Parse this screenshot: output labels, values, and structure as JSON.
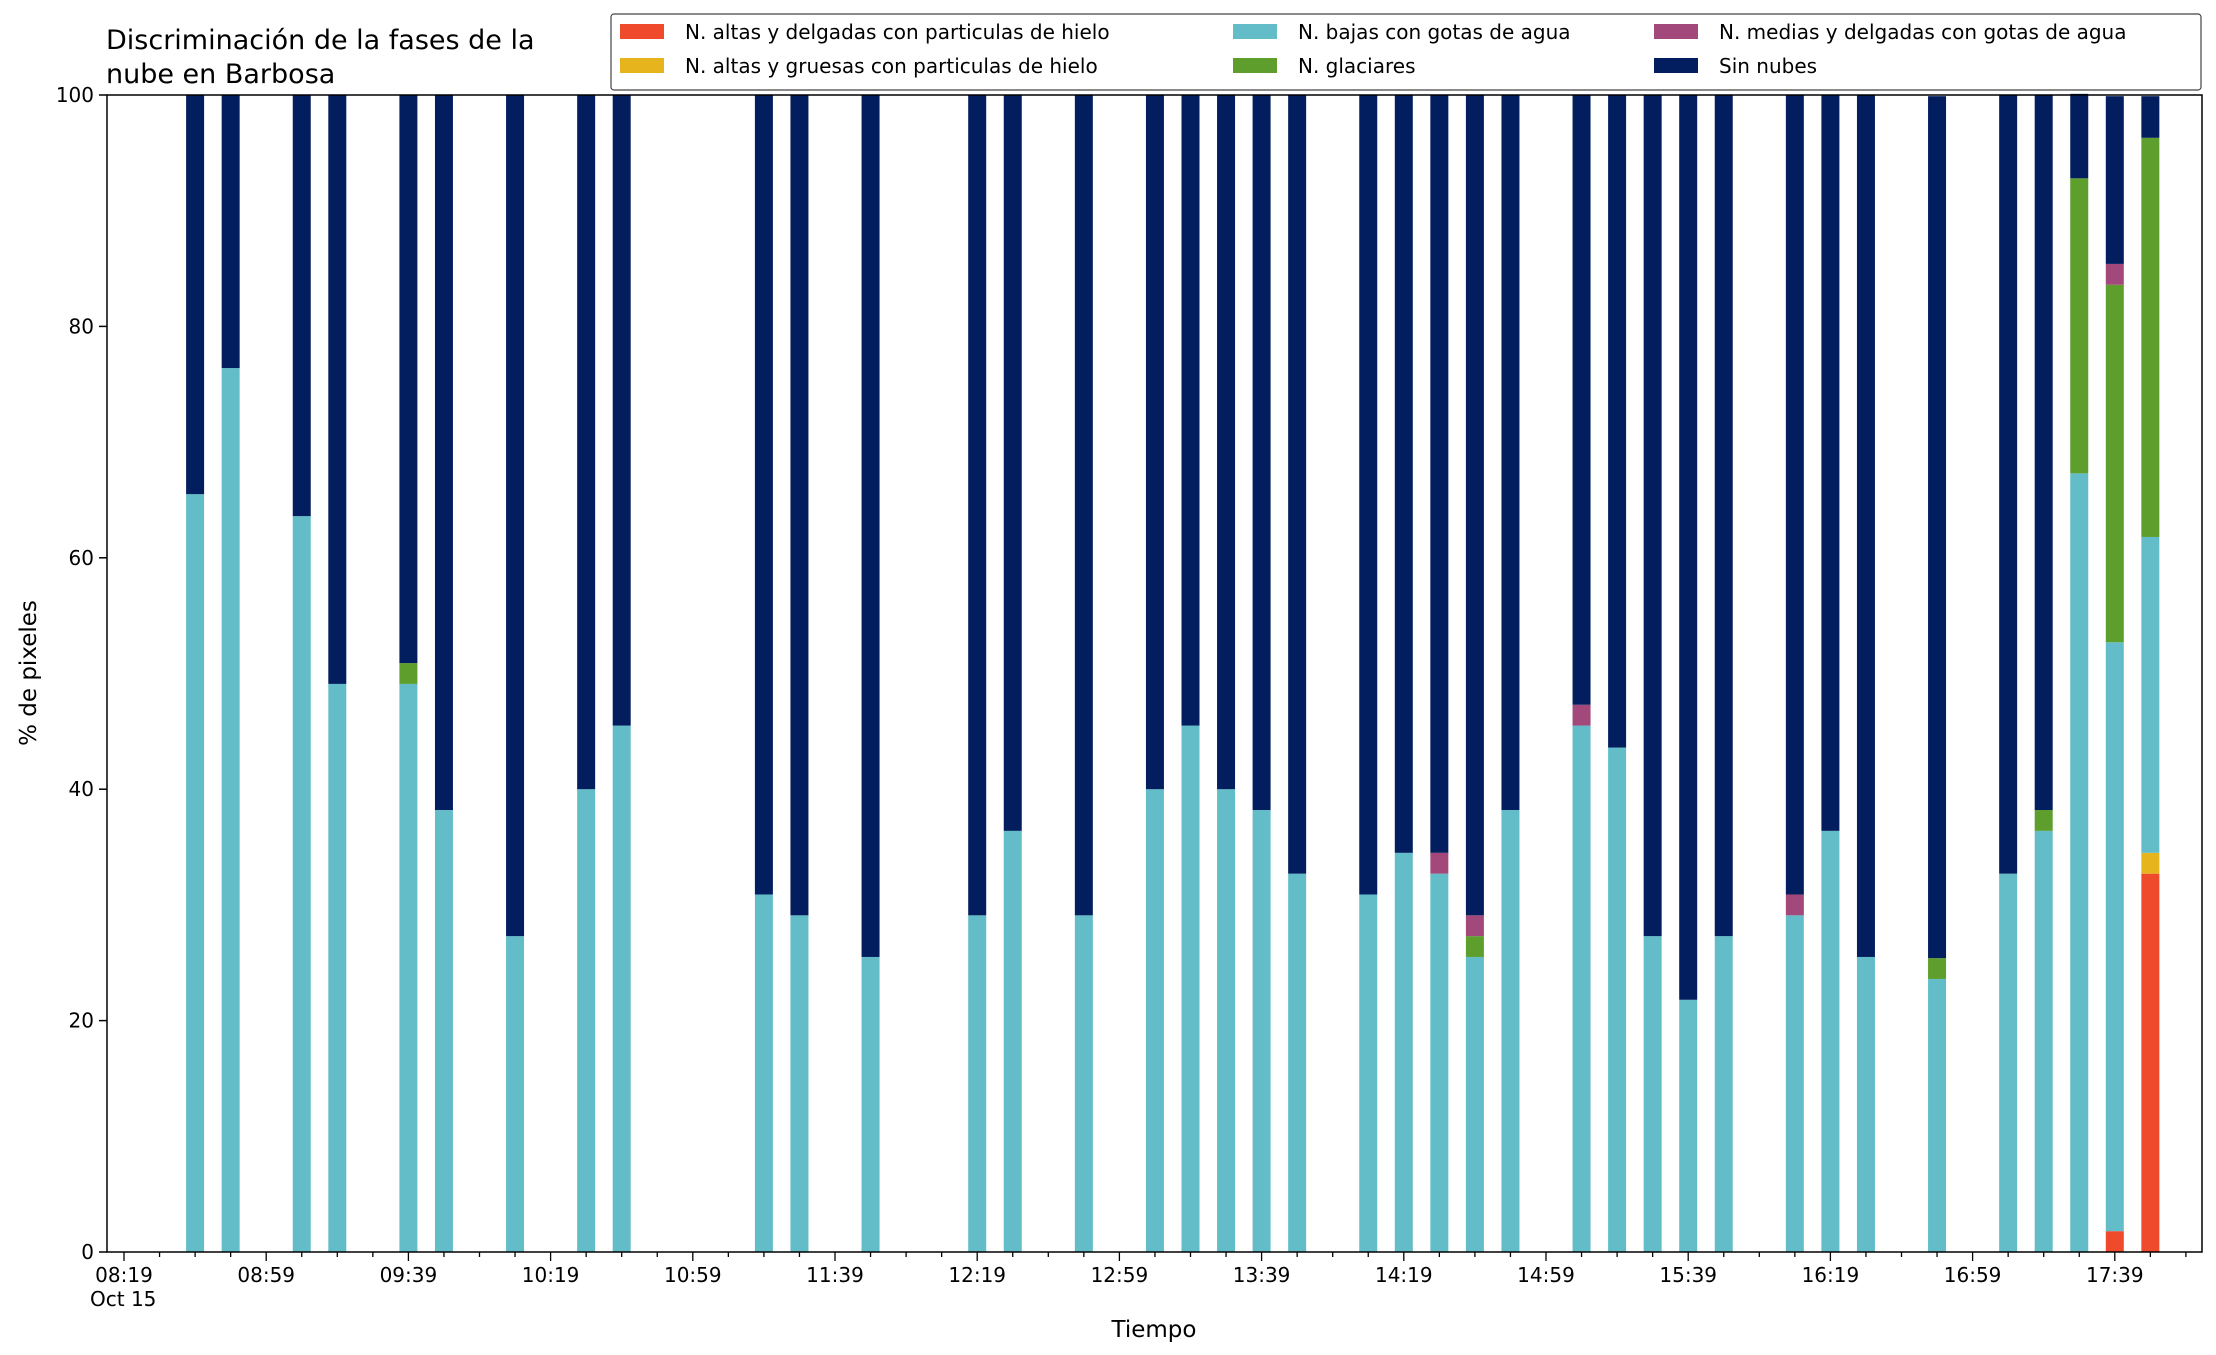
{
  "chart_data": {
    "type": "bar",
    "stacked": true,
    "title_lines": [
      "Discriminación de la fases de la",
      "nube en Barbosa"
    ],
    "xlabel": "Tiempo",
    "ylabel": "% de pixeles",
    "ylim": [
      0,
      100
    ],
    "yticks": [
      0,
      20,
      40,
      60,
      80,
      100
    ],
    "xlim": [
      "08:19",
      "17:59"
    ],
    "xtick_labels": [
      "08:19",
      "08:59",
      "09:39",
      "10:19",
      "10:59",
      "11:39",
      "12:19",
      "12:59",
      "13:39",
      "14:19",
      "14:59",
      "15:39",
      "16:19",
      "16:59",
      "17:39"
    ],
    "xtick_sublabel": "Oct 15",
    "grid": false,
    "legend_position": "top-right",
    "series": [
      {
        "name": "N. altas y delgadas con particulas de hielo",
        "color": "#EE4A2B"
      },
      {
        "name": "N. altas y gruesas con particulas de hielo",
        "color": "#E6B41C"
      },
      {
        "name": "N. bajas con gotas de agua",
        "color": "#63BDC9"
      },
      {
        "name": "N. glaciares",
        "color": "#5E9E2D"
      },
      {
        "name": "N. medias y delgadas con gotas de agua",
        "color": "#A2487A"
      },
      {
        "name": "Sin nubes",
        "color": "#031E5E"
      }
    ],
    "bars": [
      {
        "time": "08:39",
        "values": [
          0,
          0,
          65.5,
          0,
          0,
          34.5
        ]
      },
      {
        "time": "08:49",
        "values": [
          0,
          0,
          76.4,
          0,
          0,
          23.6
        ]
      },
      {
        "time": "09:09",
        "values": [
          0,
          0,
          63.6,
          0,
          0,
          36.4
        ]
      },
      {
        "time": "09:19",
        "values": [
          0,
          0,
          49.1,
          0,
          0,
          50.9
        ]
      },
      {
        "time": "09:39",
        "values": [
          0,
          0,
          49.1,
          1.8,
          0,
          49.1
        ]
      },
      {
        "time": "09:49",
        "values": [
          0,
          0,
          38.2,
          0,
          0,
          61.8
        ]
      },
      {
        "time": "10:09",
        "values": [
          0,
          0,
          27.3,
          0,
          0,
          72.7
        ]
      },
      {
        "time": "10:29",
        "values": [
          0,
          0,
          40.0,
          0,
          0,
          60.0
        ]
      },
      {
        "time": "10:39",
        "values": [
          0,
          0,
          45.5,
          0,
          0,
          54.5
        ]
      },
      {
        "time": "11:19",
        "values": [
          0,
          0,
          30.9,
          0,
          0,
          69.1
        ]
      },
      {
        "time": "11:29",
        "values": [
          0,
          0,
          29.1,
          0,
          0,
          70.9
        ]
      },
      {
        "time": "11:49",
        "values": [
          0,
          0,
          25.5,
          0,
          0,
          74.5
        ]
      },
      {
        "time": "12:19",
        "values": [
          0,
          0,
          29.1,
          0,
          0,
          70.9
        ]
      },
      {
        "time": "12:29",
        "values": [
          0,
          0,
          36.4,
          0,
          0,
          63.6
        ]
      },
      {
        "time": "12:49",
        "values": [
          0,
          0,
          29.1,
          0,
          0,
          70.9
        ]
      },
      {
        "time": "13:09",
        "values": [
          0,
          0,
          40.0,
          0,
          0,
          60.0
        ]
      },
      {
        "time": "13:19",
        "values": [
          0,
          0,
          45.5,
          0,
          0,
          54.5
        ]
      },
      {
        "time": "13:29",
        "values": [
          0,
          0,
          40.0,
          0,
          0,
          60.0
        ]
      },
      {
        "time": "13:39",
        "values": [
          0,
          0,
          38.2,
          0,
          0,
          61.8
        ]
      },
      {
        "time": "13:49",
        "values": [
          0,
          0,
          32.7,
          0,
          0,
          67.3
        ]
      },
      {
        "time": "14:09",
        "values": [
          0,
          0,
          30.9,
          0,
          0,
          69.1
        ]
      },
      {
        "time": "14:19",
        "values": [
          0,
          0,
          34.5,
          0,
          0,
          65.5
        ]
      },
      {
        "time": "14:29",
        "values": [
          0,
          0,
          32.7,
          0,
          1.8,
          65.5
        ]
      },
      {
        "time": "14:39",
        "values": [
          0,
          0,
          25.5,
          1.8,
          1.8,
          70.9
        ]
      },
      {
        "time": "14:49",
        "values": [
          0,
          0,
          38.2,
          0,
          0,
          61.8
        ]
      },
      {
        "time": "15:09",
        "values": [
          0,
          0,
          45.5,
          0,
          1.8,
          52.7
        ]
      },
      {
        "time": "15:19",
        "values": [
          0,
          0,
          43.6,
          0,
          0,
          56.4
        ]
      },
      {
        "time": "15:29",
        "values": [
          0,
          0,
          27.3,
          0,
          0,
          72.7
        ]
      },
      {
        "time": "15:39",
        "values": [
          0,
          0,
          21.8,
          0,
          0,
          78.2
        ]
      },
      {
        "time": "15:49",
        "values": [
          0,
          0,
          27.3,
          0,
          0,
          72.7
        ]
      },
      {
        "time": "16:09",
        "values": [
          0,
          0,
          29.1,
          0,
          1.8,
          69.1
        ]
      },
      {
        "time": "16:19",
        "values": [
          0,
          0,
          36.4,
          0,
          0,
          63.6
        ]
      },
      {
        "time": "16:29",
        "values": [
          0,
          0,
          25.5,
          0,
          0,
          74.5
        ]
      },
      {
        "time": "16:49",
        "values": [
          0,
          0,
          23.6,
          1.8,
          0,
          74.5
        ]
      },
      {
        "time": "17:09",
        "values": [
          0,
          0,
          32.7,
          0,
          0,
          67.3
        ]
      },
      {
        "time": "17:19",
        "values": [
          0,
          0,
          36.4,
          1.8,
          0,
          61.8
        ]
      },
      {
        "time": "17:29",
        "values": [
          0,
          0,
          67.3,
          25.5,
          0,
          7.3
        ]
      },
      {
        "time": "17:39",
        "values": [
          1.8,
          0,
          50.9,
          30.9,
          1.8,
          14.5
        ]
      },
      {
        "time": "17:49",
        "values": [
          32.7,
          1.8,
          27.3,
          34.5,
          0,
          3.6
        ]
      }
    ]
  }
}
